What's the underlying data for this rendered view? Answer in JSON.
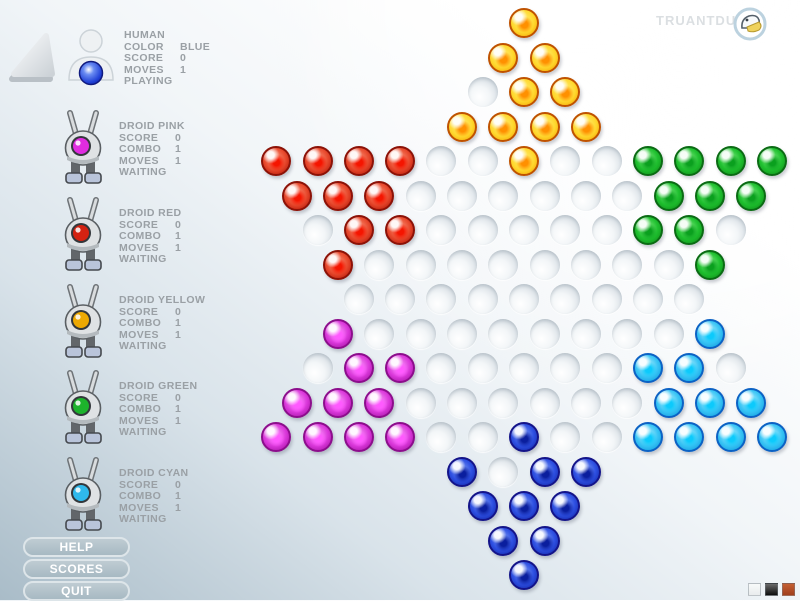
{
  "brand": {
    "name": "TRUANTDUCK"
  },
  "players": [
    {
      "name": "HUMAN",
      "stat1_label": "COLOR",
      "stat1_value": "BLUE",
      "stat2_label": "SCORE",
      "stat2_value": "0",
      "stat3_label": "MOVES",
      "stat3_value": "1",
      "status": "PLAYING",
      "marble_color": "#2e50e2"
    },
    {
      "name": "DROID PINK",
      "stat1_label": "SCORE",
      "stat1_value": "0",
      "stat2_label": "COMBO",
      "stat2_value": "1",
      "stat3_label": "MOVES",
      "stat3_value": "1",
      "status": "WAITING",
      "eye": "#e02ce0"
    },
    {
      "name": "DROID RED",
      "stat1_label": "SCORE",
      "stat1_value": "0",
      "stat2_label": "COMBO",
      "stat2_value": "1",
      "stat3_label": "MOVES",
      "stat3_value": "1",
      "status": "WAITING",
      "eye": "#d42211"
    },
    {
      "name": "DROID YELLOW",
      "stat1_label": "SCORE",
      "stat1_value": "0",
      "stat2_label": "COMBO",
      "stat2_value": "1",
      "stat3_label": "MOVES",
      "stat3_value": "1",
      "status": "WAITING",
      "eye": "#eda903"
    },
    {
      "name": "DROID GREEN",
      "stat1_label": "SCORE",
      "stat1_value": "0",
      "stat2_label": "COMBO",
      "stat2_value": "1",
      "stat3_label": "MOVES",
      "stat3_value": "1",
      "status": "WAITING",
      "eye": "#1db32c"
    },
    {
      "name": "DROID CYAN",
      "stat1_label": "SCORE",
      "stat1_value": "0",
      "stat2_label": "COMBO",
      "stat2_value": "1",
      "stat3_label": "MOVES",
      "stat3_value": "1",
      "status": "WAITING",
      "eye": "#2fb9ec"
    }
  ],
  "menu": {
    "help_label": "HELP",
    "scores_label": "SCORES",
    "quit_label": "QUIT"
  },
  "board": {
    "rows": [
      "Y",
      "YY",
      ".YY",
      "YYYY",
      "RRRR..Y..GGGG",
      "RRR......GGG",
      ".RR.....GG.",
      "R........G",
      ".........",
      "M........C",
      ".MM.....CC.",
      "MMM......CCC",
      "MMMM..B..CCCC",
      "B.BB",
      "BBB",
      "BB",
      "B"
    ],
    "legend": {
      "Y": "yellow",
      "R": "red",
      "G": "green",
      "M": "magenta",
      "C": "cyan",
      "B": "blue",
      ".": "empty"
    },
    "palette": {
      "yellow": "#ffd82e",
      "red": "#e84a2e",
      "green": "#1fc02f",
      "magenta": "#dc3adc",
      "cyan": "#3ac5f5",
      "blue": "#2e50e2",
      "empty": "#e8edf1"
    }
  },
  "swatches": [
    {
      "name": "white",
      "css": "linear-gradient(#f8fafa,#e9eced)"
    },
    {
      "name": "black",
      "css": "linear-gradient(#6a6a6a,#0d0d0d)"
    },
    {
      "name": "rust",
      "css": "linear-gradient(#c45f33,#a03f1c)"
    }
  ]
}
